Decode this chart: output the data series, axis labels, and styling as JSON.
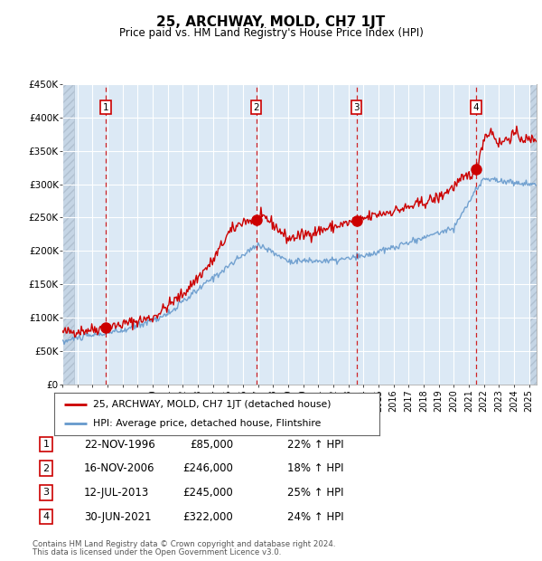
{
  "title": "25, ARCHWAY, MOLD, CH7 1JT",
  "subtitle": "Price paid vs. HM Land Registry's House Price Index (HPI)",
  "footer1": "Contains HM Land Registry data © Crown copyright and database right 2024.",
  "footer2": "This data is licensed under the Open Government Licence v3.0.",
  "legend_line1": "25, ARCHWAY, MOLD, CH7 1JT (detached house)",
  "legend_line2": "HPI: Average price, detached house, Flintshire",
  "sale_color": "#cc0000",
  "hpi_color": "#6699cc",
  "transactions": [
    {
      "label": "1",
      "price": 85000,
      "x": 1996.89
    },
    {
      "label": "2",
      "price": 246000,
      "x": 2006.87
    },
    {
      "label": "3",
      "price": 245000,
      "x": 2013.53
    },
    {
      "label": "4",
      "price": 322000,
      "x": 2021.49
    }
  ],
  "table_rows": [
    [
      "1",
      "22-NOV-1996",
      "£85,000",
      "22% ↑ HPI"
    ],
    [
      "2",
      "16-NOV-2006",
      "£246,000",
      "18% ↑ HPI"
    ],
    [
      "3",
      "12-JUL-2013",
      "£245,000",
      "25% ↑ HPI"
    ],
    [
      "4",
      "30-JUN-2021",
      "£322,000",
      "24% ↑ HPI"
    ]
  ],
  "xmin": 1994.0,
  "xmax": 2025.5,
  "ymin": 0,
  "ymax": 450000,
  "yticks": [
    0,
    50000,
    100000,
    150000,
    200000,
    250000,
    300000,
    350000,
    400000,
    450000
  ],
  "ytick_labels": [
    "£0",
    "£50K",
    "£100K",
    "£150K",
    "£200K",
    "£250K",
    "£300K",
    "£350K",
    "£400K",
    "£450K"
  ],
  "background_color": "#dce9f5",
  "hatch_color": "#c5d5e5",
  "grid_color": "#ffffff"
}
